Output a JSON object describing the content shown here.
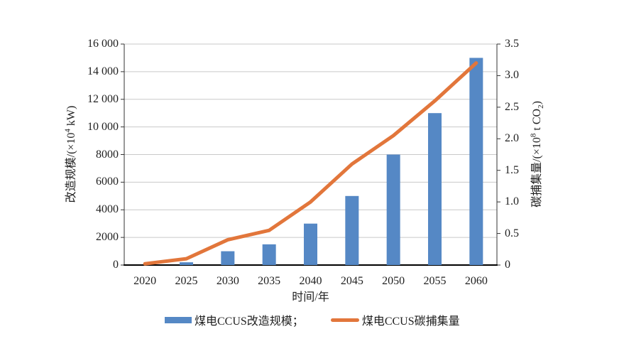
{
  "chart_data": {
    "type": "bar",
    "subtype": "combo-bar-line-dual-axis",
    "categories": [
      "2020",
      "2025",
      "2030",
      "2035",
      "2040",
      "2045",
      "2050",
      "2055",
      "2060"
    ],
    "series": [
      {
        "name": "煤电CCUS改造规模",
        "type": "bar",
        "axis": "left",
        "values": [
          0,
          200,
          1000,
          1500,
          3000,
          5000,
          8000,
          11000,
          15000
        ],
        "color": "#5588c5"
      },
      {
        "name": "煤电CCUS碳捕集量",
        "type": "line",
        "axis": "right",
        "values": [
          0.02,
          0.1,
          0.4,
          0.55,
          1.0,
          1.6,
          2.05,
          2.6,
          3.2
        ],
        "color": "#e2763b"
      }
    ],
    "xlabel": "时间/年",
    "left_axis": {
      "title_prefix": "改造规模/(×10",
      "title_sup": "4",
      "title_suffix": " kW)",
      "min": 0,
      "max": 16000,
      "tick_step": 2000,
      "ticks": [
        "0",
        "2000",
        "4000",
        "6000",
        "8000",
        "10 000",
        "12 000",
        "14 000",
        "16 000"
      ]
    },
    "right_axis": {
      "title_prefix": "碳捕集量/(×10",
      "title_sup": "8",
      "title_mid": " t CO",
      "title_sub": "2",
      "title_end": ")",
      "min": 0,
      "max": 3.5,
      "tick_step": 0.5,
      "ticks": [
        "0",
        "0.5",
        "1.0",
        "1.5",
        "2.0",
        "2.5",
        "3.0",
        "3.5"
      ]
    },
    "legend": [
      {
        "label": "煤电CCUS改造规模；",
        "swatch": "bar"
      },
      {
        "label": "煤电CCUS碳捕集量",
        "swatch": "line"
      }
    ],
    "grid": "horizontal gridlines at left-axis 2000 intervals",
    "legend_position": "bottom"
  },
  "colors": {
    "bar": "#5588c5",
    "line": "#e2763b",
    "grid": "#c9c9c9",
    "axis": "#333333",
    "x_axis": "#000000",
    "text": "#1f1f1f",
    "background": "#ffffff"
  }
}
